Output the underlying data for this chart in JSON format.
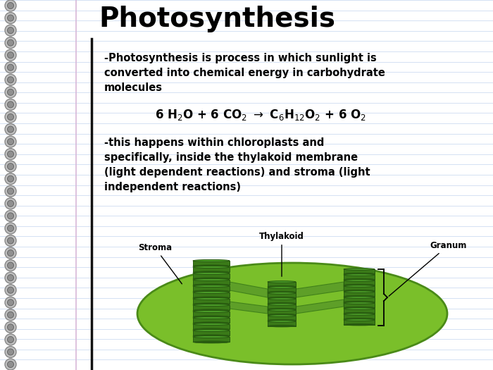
{
  "title": "Photosynthesis",
  "title_fontsize": 28,
  "title_fontweight": "bold",
  "bg_color": "#ffffff",
  "notebook_line_color": "#c8d8f0",
  "notebook_line_color2": "#e0d0e8",
  "sidebar_color": "#111111",
  "spiral_color": "#aaaaaa",
  "spiral_inner": "#888888",
  "text1": "-Photosynthesis is process in which sunlight is\nconverted into chemical energy in carbohydrate\nmolecules",
  "text2": "-this happens within chloroplasts and\nspecifically, inside the thylakoid membrane\n(light dependent reactions) and stroma (light\nindependent reactions)",
  "text_fontsize": 10.5,
  "diagram_color": "#7abf2a",
  "diagram_edge_color": "#4a8a18",
  "thylakoid_color": "#3a7a18",
  "thylakoid_edge_color": "#285a10",
  "thylakoid_top_color": "#4a9a28",
  "label_stroma": "Stroma",
  "label_thylakoid": "Thylakoid",
  "label_granum": "Granum",
  "label_fontsize": 8.5
}
